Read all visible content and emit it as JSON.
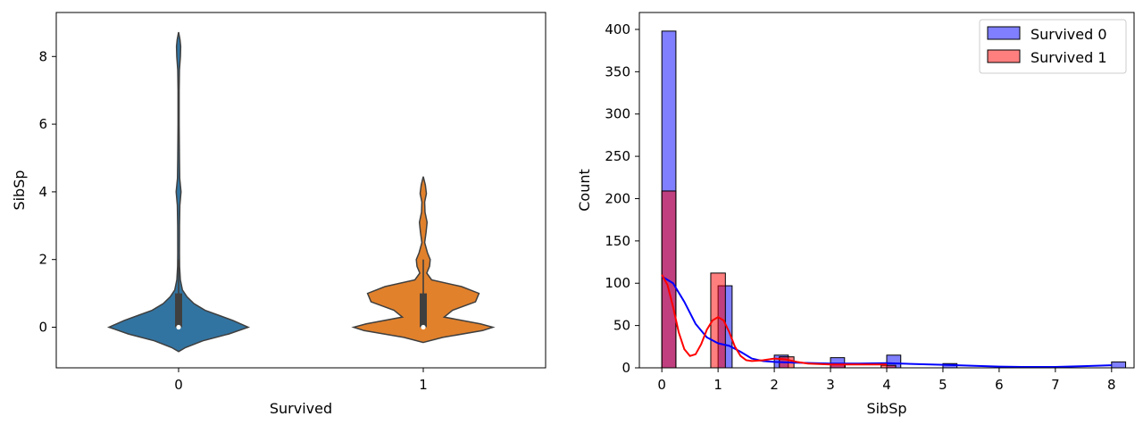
{
  "chart_data": [
    {
      "type": "violin",
      "xlabel": "Survived",
      "ylabel": "SibSp",
      "categories": [
        "0",
        "1"
      ],
      "ylim": [
        -1.2,
        9.3
      ],
      "yticks": [
        0,
        2,
        4,
        6,
        8
      ],
      "colors": [
        "#3274a1",
        "#e1812c"
      ],
      "violins": [
        {
          "category": "0",
          "median": 0,
          "q1": 0,
          "q3": 1,
          "whisker_low": 0,
          "whisker_high": 2,
          "profile": [
            [
              -0.72,
              0
            ],
            [
              -0.6,
              0.1
            ],
            [
              -0.4,
              0.35
            ],
            [
              -0.2,
              0.72
            ],
            [
              0,
              1
            ],
            [
              0.2,
              0.78
            ],
            [
              0.35,
              0.58
            ],
            [
              0.5,
              0.38
            ],
            [
              0.7,
              0.22
            ],
            [
              0.9,
              0.12
            ],
            [
              1.1,
              0.055
            ],
            [
              1.4,
              0.025
            ],
            [
              1.8,
              0.014
            ],
            [
              2.2,
              0.012
            ],
            [
              3.0,
              0.013
            ],
            [
              3.6,
              0.018
            ],
            [
              4.0,
              0.035
            ],
            [
              4.4,
              0.016
            ],
            [
              5.0,
              0.012
            ],
            [
              6.0,
              0.008
            ],
            [
              7.0,
              0.008
            ],
            [
              7.6,
              0.012
            ],
            [
              8.0,
              0.026
            ],
            [
              8.3,
              0.03
            ],
            [
              8.5,
              0.02
            ],
            [
              8.72,
              0
            ]
          ]
        },
        {
          "category": "1",
          "median": 0,
          "q1": 0,
          "q3": 1,
          "whisker_low": 0,
          "whisker_high": 2,
          "profile": [
            [
              -0.45,
              0
            ],
            [
              -0.3,
              0.28
            ],
            [
              -0.1,
              0.85
            ],
            [
              0,
              1
            ],
            [
              0.1,
              0.82
            ],
            [
              0.3,
              0.3
            ],
            [
              0.5,
              0.42
            ],
            [
              0.75,
              0.75
            ],
            [
              1.0,
              0.8
            ],
            [
              1.2,
              0.55
            ],
            [
              1.4,
              0.12
            ],
            [
              1.6,
              0.05
            ],
            [
              1.8,
              0.09
            ],
            [
              2.0,
              0.1
            ],
            [
              2.2,
              0.06
            ],
            [
              2.5,
              0.02
            ],
            [
              2.8,
              0.04
            ],
            [
              3.1,
              0.055
            ],
            [
              3.4,
              0.025
            ],
            [
              3.7,
              0.02
            ],
            [
              3.95,
              0.045
            ],
            [
              4.2,
              0.03
            ],
            [
              4.45,
              0
            ]
          ]
        }
      ]
    },
    {
      "type": "histogram",
      "xlabel": "SibSp",
      "ylabel": "Count",
      "xlim": [
        -0.4,
        8.4
      ],
      "ylim": [
        0,
        420
      ],
      "xticks": [
        0,
        1,
        2,
        3,
        4,
        5,
        6,
        7,
        8
      ],
      "yticks": [
        0,
        50,
        100,
        150,
        200,
        250,
        300,
        350,
        400
      ],
      "legend_position": "top-right",
      "series": [
        {
          "name": "Survived 0",
          "color": "#0000ff",
          "bins": [
            [
              0,
              0.25,
              398
            ],
            [
              1,
              1.25,
              97
            ],
            [
              2,
              2.25,
              15
            ],
            [
              3,
              3.25,
              12
            ],
            [
              4,
              4.25,
              15
            ],
            [
              5,
              5.25,
              5
            ],
            [
              8,
              8.25,
              7
            ]
          ],
          "kde": [
            [
              0,
              108
            ],
            [
              0.2,
              100
            ],
            [
              0.4,
              78
            ],
            [
              0.6,
              52
            ],
            [
              0.8,
              36
            ],
            [
              1.0,
              29
            ],
            [
              1.2,
              26
            ],
            [
              1.4,
              19
            ],
            [
              1.6,
              11
            ],
            [
              1.8,
              8
            ],
            [
              2.0,
              7
            ],
            [
              2.4,
              6
            ],
            [
              3.0,
              5
            ],
            [
              3.5,
              5
            ],
            [
              4.0,
              5.5
            ],
            [
              4.5,
              4.5
            ],
            [
              5.0,
              3.5
            ],
            [
              5.5,
              2.5
            ],
            [
              6.0,
              1.5
            ],
            [
              6.5,
              1
            ],
            [
              7.0,
              1
            ],
            [
              7.5,
              2
            ],
            [
              8.0,
              3
            ]
          ]
        },
        {
          "name": "Survived 1",
          "color": "#ff0000",
          "bins": [
            [
              0,
              0.25,
              209
            ],
            [
              0.87,
              1.13,
              112
            ],
            [
              2.09,
              2.35,
              13
            ],
            [
              3.0,
              3.26,
              4
            ],
            [
              3.9,
              4.16,
              3
            ]
          ],
          "kde": [
            [
              0,
              110
            ],
            [
              0.1,
              98
            ],
            [
              0.2,
              72
            ],
            [
              0.3,
              42
            ],
            [
              0.4,
              22
            ],
            [
              0.5,
              14
            ],
            [
              0.6,
              16
            ],
            [
              0.7,
              28
            ],
            [
              0.8,
              45
            ],
            [
              0.9,
              56
            ],
            [
              1.0,
              60
            ],
            [
              1.1,
              56
            ],
            [
              1.2,
              42
            ],
            [
              1.3,
              25
            ],
            [
              1.4,
              14
            ],
            [
              1.5,
              9
            ],
            [
              1.6,
              8
            ],
            [
              1.8,
              9
            ],
            [
              2.0,
              11
            ],
            [
              2.2,
              10
            ],
            [
              2.4,
              7
            ],
            [
              2.6,
              5
            ],
            [
              3.0,
              4
            ],
            [
              3.4,
              4
            ],
            [
              3.7,
              4
            ],
            [
              4.0,
              4
            ]
          ]
        }
      ]
    }
  ]
}
